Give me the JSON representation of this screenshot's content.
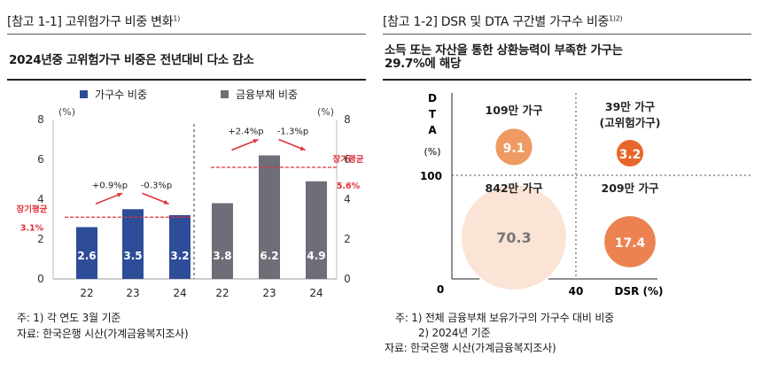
{
  "left": {
    "title": "[참고 1-1] 고위험가구 비중 변화",
    "title_note": "1)",
    "subtitle": "2024년중 고위험가구 비중은 전년대비 다소 감소",
    "notes": [
      "주: 1) 각 연도 3월 기준",
      "자료: 한국은행 시산(가계금융복지조사)"
    ]
  },
  "right": {
    "title": "[참고 1-2] DSR 및 DTA 구간별 가구수 비중",
    "title_note": "1)2)",
    "subtitle_lines": [
      "소득 또는 자산을 통한 상환능력이 부족한 가구는",
      "29.7%에 해당"
    ],
    "notes": [
      "주: 1) 전체 금융부채 보유가구의 가구수 대비 비중",
      "2) 2024년 기준",
      "자료: 한국은행 시산(가계금융복지조사)"
    ]
  },
  "chart_data": [
    {
      "type": "bar",
      "legend": [
        "가구수 비중",
        "금융부채 비중"
      ],
      "colors": {
        "households": "#2e4d99",
        "debt": "#6e6e78",
        "avg_line": "#e0303a",
        "annotation": "#e0303a"
      },
      "left_axis": {
        "unit": "(%)",
        "ylim": [
          0,
          8
        ],
        "ticks": [
          "0",
          "2",
          "4",
          "6",
          "8"
        ]
      },
      "right_axis": {
        "unit": "(%)",
        "ylim": [
          0,
          8
        ],
        "ticks": [
          "0",
          "2",
          "4",
          "6",
          "8"
        ]
      },
      "groups": [
        {
          "series": "가구수 비중",
          "categories": [
            "22",
            "23",
            "24"
          ],
          "values": [
            2.6,
            3.5,
            3.2
          ],
          "labels": [
            "2.6",
            "3.5",
            "3.2"
          ],
          "long_term_avg": {
            "label": "장기평균",
            "value": 3.1,
            "value_label": "3.1%"
          },
          "changes": [
            "+0.9%p",
            "-0.3%p"
          ]
        },
        {
          "series": "금융부채 비중",
          "categories": [
            "22",
            "23",
            "24"
          ],
          "values": [
            3.8,
            6.2,
            4.9
          ],
          "labels": [
            "3.8",
            "6.2",
            "4.9"
          ],
          "long_term_avg": {
            "label": "장기평균",
            "value": 5.6,
            "value_label": "5.6%"
          },
          "changes": [
            "+2.4%p",
            "-1.3%p"
          ]
        }
      ]
    },
    {
      "type": "bubble",
      "x_axis": {
        "label": "DSR (%)",
        "threshold": "40"
      },
      "y_axis": {
        "label": "D T A (%)",
        "label_chars": [
          "D",
          "T",
          "A",
          "(%)"
        ],
        "threshold": "100"
      },
      "origin_label": "0",
      "quadrants": [
        {
          "position": "top-left",
          "count_label": "109만 가구",
          "value": 9.1,
          "value_label": "9.1",
          "color": "#ee9a62"
        },
        {
          "position": "top-right",
          "count_label": "39만 가구",
          "sub_label": "(고위험가구)",
          "value": 3.2,
          "value_label": "3.2",
          "color": "#e8662a"
        },
        {
          "position": "bottom-left",
          "count_label": "842만 가구",
          "value": 70.3,
          "value_label": "70.3",
          "color": "#fbe3d6"
        },
        {
          "position": "bottom-right",
          "count_label": "209만 가구",
          "value": 17.4,
          "value_label": "17.4",
          "color": "#ec8252"
        }
      ]
    }
  ]
}
